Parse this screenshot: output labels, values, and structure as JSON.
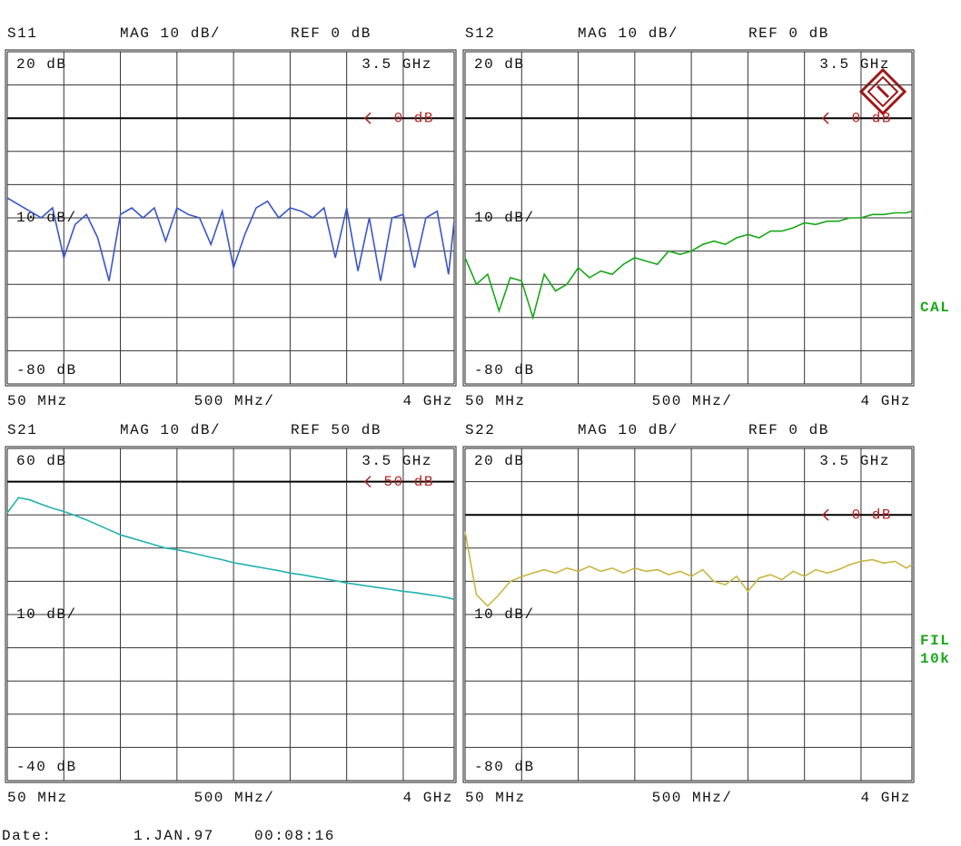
{
  "chart_data": [
    {
      "type": "line",
      "title": "S11",
      "format": "MAG 10 dB/",
      "ref_text": "REF 0 dB",
      "marker_text": "3.5 GHz",
      "ref_marker": "0 dB",
      "scale_label": "10 dB/",
      "x_division_label": "500 MHz/",
      "ref_level": 0,
      "color": "#3a56c9",
      "xlim": [
        50,
        4000
      ],
      "ylim": [
        -80,
        20
      ],
      "xticks": [
        {
          "value": 50,
          "label": "50 MHz"
        },
        {
          "value": 4000,
          "label": "4 GHz"
        }
      ],
      "yticks": [
        {
          "value": 20,
          "label": "20 dB"
        },
        {
          "value": -80,
          "label": "-80 dB"
        }
      ],
      "xgrid": [
        550,
        1050,
        1550,
        2050,
        2550,
        3050,
        3550
      ],
      "ygrid": [
        10,
        0,
        -10,
        -20,
        -30,
        -40,
        -50,
        -60,
        -70
      ],
      "x": [
        50,
        150,
        250,
        350,
        450,
        550,
        650,
        750,
        850,
        950,
        1050,
        1150,
        1250,
        1350,
        1450,
        1550,
        1650,
        1750,
        1850,
        1950,
        2050,
        2150,
        2250,
        2350,
        2450,
        2550,
        2650,
        2750,
        2850,
        2950,
        3050,
        3150,
        3250,
        3350,
        3450,
        3550,
        3650,
        3750,
        3850,
        3950,
        4000
      ],
      "values": [
        -24,
        -26,
        -28,
        -30,
        -27,
        -42,
        -32,
        -29,
        -36,
        -49,
        -29,
        -27,
        -30,
        -27,
        -37,
        -27,
        -29,
        -30,
        -38,
        -28,
        -45,
        -35,
        -27,
        -25,
        -30,
        -27,
        -28,
        -30,
        -27,
        -42,
        -27,
        -46,
        -30,
        -49,
        -30,
        -29,
        -45,
        -30,
        -28,
        -47,
        -31
      ]
    },
    {
      "type": "line",
      "title": "S12",
      "format": "MAG 10 dB/",
      "ref_text": "REF 0 dB",
      "marker_text": "3.5 GHz",
      "ref_marker": "0 dB",
      "scale_label": "10 dB/",
      "x_division_label": "500 MHz/",
      "ref_level": 0,
      "color": "#18a818",
      "xlim": [
        50,
        4000
      ],
      "ylim": [
        -80,
        20
      ],
      "xticks": [
        {
          "value": 50,
          "label": "50 MHz"
        },
        {
          "value": 4000,
          "label": "4 GHz"
        }
      ],
      "yticks": [
        {
          "value": 20,
          "label": "20 dB"
        },
        {
          "value": -80,
          "label": "-80 dB"
        }
      ],
      "xgrid": [
        550,
        1050,
        1550,
        2050,
        2550,
        3050,
        3550
      ],
      "ygrid": [
        10,
        0,
        -10,
        -20,
        -30,
        -40,
        -50,
        -60,
        -70
      ],
      "x": [
        50,
        150,
        250,
        350,
        450,
        550,
        650,
        750,
        850,
        950,
        1050,
        1150,
        1250,
        1350,
        1450,
        1550,
        1650,
        1750,
        1850,
        1950,
        2050,
        2150,
        2250,
        2350,
        2450,
        2550,
        2650,
        2750,
        2850,
        2950,
        3050,
        3150,
        3250,
        3350,
        3450,
        3550,
        3650,
        3750,
        3850,
        3950,
        4000
      ],
      "values": [
        -42,
        -50,
        -47,
        -58,
        -48,
        -49,
        -60,
        -47,
        -52,
        -50,
        -45,
        -48,
        -46,
        -47,
        -44,
        -42,
        -43,
        -44,
        -40,
        -41,
        -40,
        -38,
        -37,
        -38,
        -36,
        -35,
        -36,
        -34,
        -34,
        -33,
        -31.5,
        -32,
        -31,
        -31,
        -30,
        -30,
        -29,
        -29,
        -28.5,
        -28.5,
        -28
      ]
    },
    {
      "type": "line",
      "title": "S21",
      "format": "MAG 10 dB/",
      "ref_text": "REF 50 dB",
      "marker_text": "3.5 GHz",
      "ref_marker": "50 dB",
      "scale_label": "10 dB/",
      "x_division_label": "500 MHz/",
      "ref_level": 50,
      "color": "#20b2ae",
      "xlim": [
        50,
        4000
      ],
      "ylim": [
        -40,
        60
      ],
      "xticks": [
        {
          "value": 50,
          "label": "50 MHz"
        },
        {
          "value": 4000,
          "label": "4 GHz"
        }
      ],
      "yticks": [
        {
          "value": 60,
          "label": "60 dB"
        },
        {
          "value": -40,
          "label": "-40 dB"
        }
      ],
      "xgrid": [
        550,
        1050,
        1550,
        2050,
        2550,
        3050,
        3550
      ],
      "ygrid": [
        50,
        40,
        30,
        20,
        10,
        0,
        -10,
        -20,
        -30
      ],
      "x": [
        50,
        150,
        250,
        350,
        450,
        550,
        650,
        750,
        850,
        950,
        1050,
        1150,
        1250,
        1350,
        1450,
        1550,
        1650,
        1750,
        1850,
        1950,
        2050,
        2150,
        2250,
        2350,
        2450,
        2550,
        2650,
        2750,
        2850,
        2950,
        3050,
        3150,
        3250,
        3350,
        3450,
        3550,
        3650,
        3750,
        3850,
        3950,
        4000
      ],
      "values": [
        40.6,
        45.2,
        44.5,
        43.2,
        42,
        41,
        39.8,
        38.5,
        37,
        35.5,
        34,
        33,
        32,
        31,
        30,
        29.5,
        28.8,
        28,
        27.2,
        26.5,
        25.6,
        25,
        24.4,
        23.8,
        23.2,
        22.5,
        22,
        21.4,
        20.8,
        20.2,
        19.5,
        19,
        18.5,
        18,
        17.5,
        17,
        16.6,
        16.1,
        15.6,
        15,
        14.6
      ]
    },
    {
      "type": "line",
      "title": "S22",
      "format": "MAG 10 dB/",
      "ref_text": "REF 0 dB",
      "marker_text": "3.5 GHz",
      "ref_marker": "0 dB",
      "scale_label": "10 dB/",
      "x_division_label": "500 MHz/",
      "ref_level": 0,
      "color": "#c9b640",
      "xlim": [
        50,
        4000
      ],
      "ylim": [
        -80,
        20
      ],
      "xticks": [
        {
          "value": 50,
          "label": "50 MHz"
        },
        {
          "value": 4000,
          "label": "4 GHz"
        }
      ],
      "yticks": [
        {
          "value": 20,
          "label": "20 dB"
        },
        {
          "value": -80,
          "label": "-80 dB"
        }
      ],
      "xgrid": [
        550,
        1050,
        1550,
        2050,
        2550,
        3050,
        3550
      ],
      "ygrid": [
        10,
        0,
        -10,
        -20,
        -30,
        -40,
        -50,
        -60,
        -70
      ],
      "x": [
        50,
        150,
        250,
        350,
        450,
        550,
        650,
        750,
        850,
        950,
        1050,
        1150,
        1250,
        1350,
        1450,
        1550,
        1650,
        1750,
        1850,
        1950,
        2050,
        2150,
        2250,
        2350,
        2450,
        2550,
        2650,
        2750,
        2850,
        2950,
        3050,
        3150,
        3250,
        3350,
        3450,
        3550,
        3650,
        3750,
        3850,
        3950,
        4000
      ],
      "values": [
        -5,
        -24,
        -27.5,
        -24,
        -20,
        -18.6,
        -17.5,
        -16.5,
        -17.5,
        -16,
        -17,
        -15.5,
        -17,
        -16,
        -17.5,
        -16,
        -17,
        -16.5,
        -18,
        -17,
        -18.5,
        -16.5,
        -20,
        -21,
        -18.5,
        -23,
        -19,
        -18,
        -19.5,
        -17,
        -18.5,
        -16.5,
        -17.5,
        -16.5,
        -15,
        -14,
        -13.5,
        -14.5,
        -14,
        -16,
        -15
      ]
    }
  ],
  "side_labels": [
    "CAL",
    "FIL",
    "10k"
  ],
  "footer": {
    "date_label": "Date:",
    "date": "1.JAN.97",
    "time": "00:08:16"
  }
}
